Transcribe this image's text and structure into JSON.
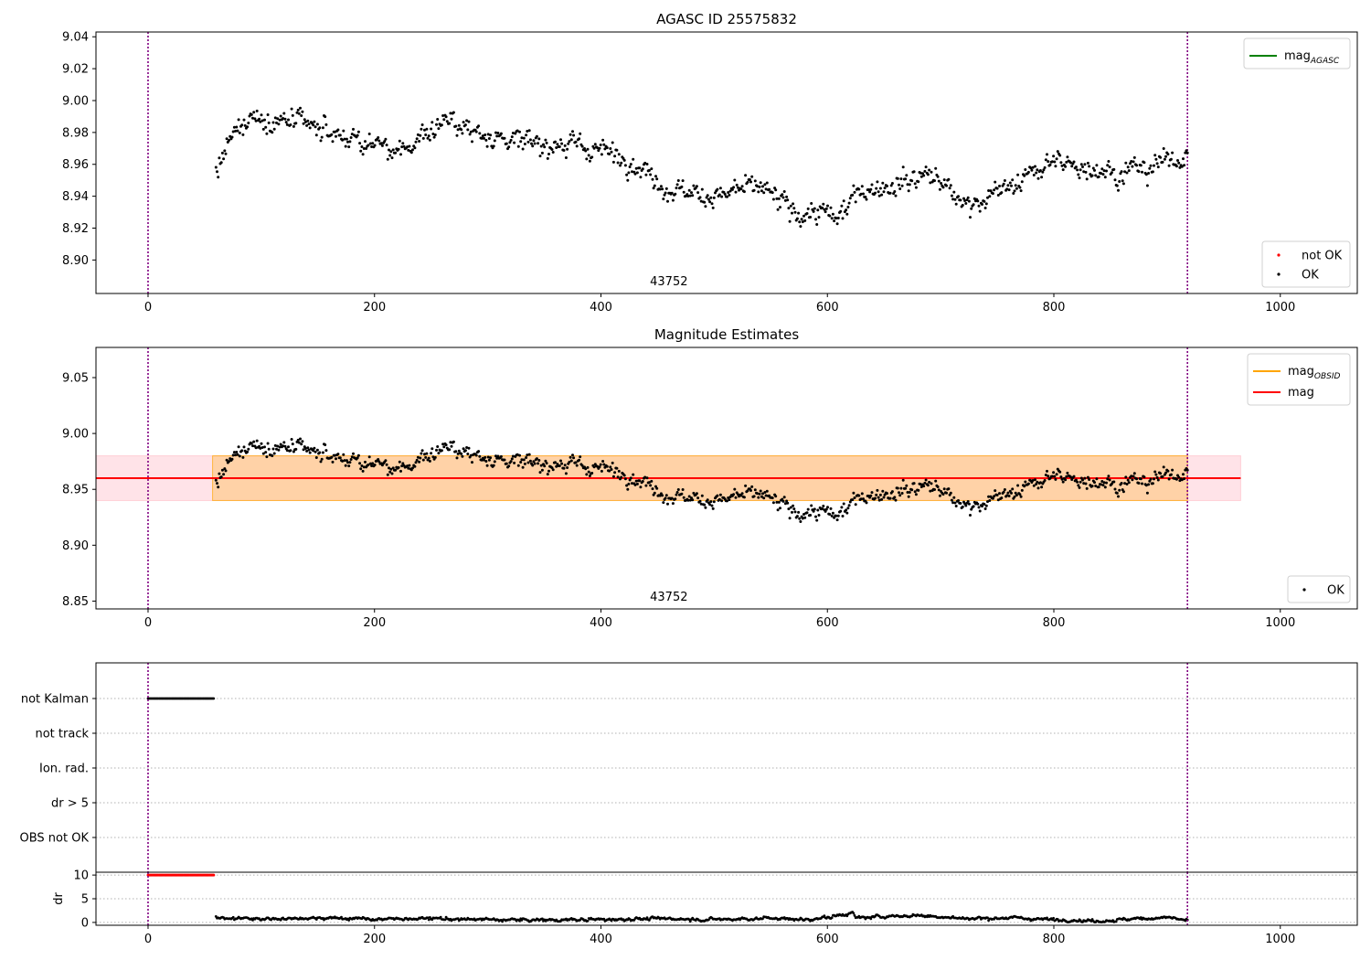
{
  "chart_data": [
    {
      "type": "scatter",
      "title": "AGASC ID 25575832",
      "xlim": [
        -46,
        1068
      ],
      "ylim": [
        8.879,
        9.043
      ],
      "xticks": [
        0,
        200,
        400,
        600,
        800,
        1000
      ],
      "xtick_labels": [
        "0",
        "200",
        "400",
        "600",
        "800",
        "1000"
      ],
      "yticks": [
        8.9,
        8.92,
        8.94,
        8.96,
        8.98,
        9.0,
        9.02,
        9.04
      ],
      "ytick_labels": [
        "8.90",
        "8.92",
        "8.94",
        "8.96",
        "8.98",
        "9.00",
        "9.02",
        "9.04"
      ],
      "vlines": [
        0,
        918
      ],
      "vline_color": "#800080",
      "obsid_label": {
        "text": "43752",
        "x": 460
      },
      "legend_lines": [
        {
          "label": "mag",
          "subscript": "AGASC",
          "color": "#008000"
        }
      ],
      "legend_points": [
        {
          "label": "not OK",
          "color": "#ff0000"
        },
        {
          "label": "OK",
          "color": "#000000"
        }
      ],
      "point_color": "#000000",
      "series": [
        {
          "name": "OK",
          "x_range": [
            60,
            918
          ],
          "n_points": 900,
          "trend_x": [
            60,
            70,
            90,
            130,
            200,
            220,
            260,
            300,
            360,
            400,
            430,
            460,
            500,
            540,
            570,
            610,
            630,
            660,
            690,
            720,
            760,
            800,
            860,
            918
          ],
          "trend_y": [
            8.955,
            8.97,
            8.99,
            8.985,
            8.973,
            8.965,
            8.988,
            8.978,
            8.972,
            8.97,
            8.96,
            8.945,
            8.94,
            8.946,
            8.93,
            8.927,
            8.945,
            8.948,
            8.955,
            8.935,
            8.945,
            8.962,
            8.955,
            8.965
          ],
          "scatter_amplitude": 0.0075
        }
      ]
    },
    {
      "type": "scatter",
      "title": "Magnitude Estimates",
      "xlim": [
        -46,
        1068
      ],
      "ylim": [
        8.843,
        9.077
      ],
      "xticks": [
        0,
        200,
        400,
        600,
        800,
        1000
      ],
      "xtick_labels": [
        "0",
        "200",
        "400",
        "600",
        "800",
        "1000"
      ],
      "yticks": [
        8.85,
        8.9,
        8.95,
        9.0,
        9.05
      ],
      "ytick_labels": [
        "8.85",
        "8.90",
        "8.95",
        "9.00",
        "9.05"
      ],
      "vlines": [
        0,
        918
      ],
      "vline_color": "#800080",
      "obsid_label": {
        "text": "43752",
        "x": 460
      },
      "bands": [
        {
          "x": [
            -46,
            965
          ],
          "y": [
            8.94,
            8.98
          ],
          "color": "#ffc0cb",
          "opacity": 0.45
        },
        {
          "x": [
            57,
            918
          ],
          "y": [
            8.94,
            8.98
          ],
          "color": "#ffa500",
          "opacity": 0.28
        }
      ],
      "hlines": [
        {
          "y": 8.96,
          "x": [
            -46,
            965
          ],
          "color": "#ff0000"
        }
      ],
      "legend_lines": [
        {
          "label": "mag",
          "subscript": "OBSID",
          "color": "#ffa500"
        },
        {
          "label": "mag",
          "subscript": "",
          "color": "#ff0000"
        }
      ],
      "legend_points": [
        {
          "label": "OK",
          "color": "#000000"
        }
      ],
      "point_color": "#000000",
      "same_points_as_panel": 0
    },
    {
      "type": "scatter",
      "title": "",
      "xlim": [
        -46,
        1068
      ],
      "xticks": [
        0,
        200,
        400,
        600,
        800,
        1000
      ],
      "xtick_labels": [
        "0",
        "200",
        "400",
        "600",
        "800",
        "1000"
      ],
      "vlines": [
        0,
        918
      ],
      "vline_color": "#800080",
      "flag_categories": [
        "not Kalman",
        "not track",
        "Ion. rad.",
        "dr > 5",
        "OBS not OK"
      ],
      "flag_points": [
        {
          "category": "not Kalman",
          "x_range": [
            0,
            58
          ],
          "n_points": 60,
          "color": "#000000"
        }
      ]
    },
    {
      "type": "scatter",
      "title": "",
      "ylabel": "dr",
      "xlim": [
        -46,
        1068
      ],
      "ylim": [
        -0.6,
        10.6
      ],
      "xticks": [
        0,
        200,
        400,
        600,
        800,
        1000
      ],
      "xtick_labels": [
        "0",
        "200",
        "400",
        "600",
        "800",
        "1000"
      ],
      "yticks": [
        0,
        5,
        10
      ],
      "ytick_labels": [
        "0",
        "5",
        "10"
      ],
      "vlines": [
        0,
        918
      ],
      "vline_color": "#800080",
      "series": [
        {
          "name": "dr > 5",
          "x_range": [
            0,
            58
          ],
          "n_points": 60,
          "y_value": 10,
          "color": "#ff0000"
        },
        {
          "name": "OK",
          "x_range": [
            60,
            918
          ],
          "n_points": 900,
          "color": "#000000",
          "trend_x": [
            60,
            100,
            150,
            200,
            250,
            300,
            350,
            400,
            450,
            500,
            550,
            580,
            600,
            622,
            625,
            680,
            720,
            760,
            800,
            840,
            900,
            918
          ],
          "trend_y": [
            1.0,
            0.7,
            1.0,
            0.7,
            0.8,
            0.6,
            0.5,
            0.6,
            0.8,
            0.6,
            0.9,
            0.6,
            1.0,
            2.0,
            1.0,
            1.5,
            0.8,
            1.0,
            0.6,
            0.3,
            1.1,
            0.4
          ],
          "scatter_amplitude": 0.35
        }
      ]
    }
  ]
}
